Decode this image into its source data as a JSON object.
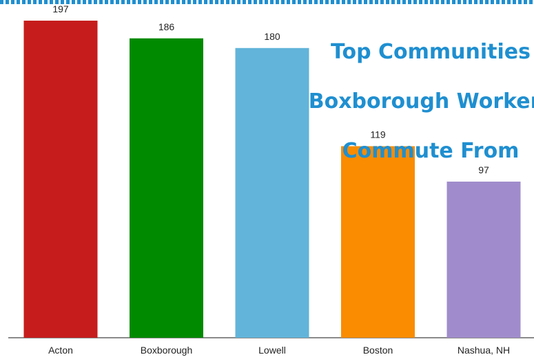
{
  "chart_data": {
    "type": "bar",
    "title": "Top Communities Boxborough Workers Commute From",
    "title_lines": [
      "Top Communities",
      "Boxborough Workers",
      "Commute From"
    ],
    "categories": [
      "Acton",
      "Boxborough",
      "Lowell",
      "Boston",
      "Nashua, NH"
    ],
    "values": [
      197,
      186,
      180,
      119,
      97
    ],
    "colors": [
      "#c61c1c",
      "#008a00",
      "#62b4da",
      "#f98c00",
      "#a08ccc"
    ],
    "ylim": [
      0,
      200
    ],
    "grid": false,
    "legend": "none"
  }
}
